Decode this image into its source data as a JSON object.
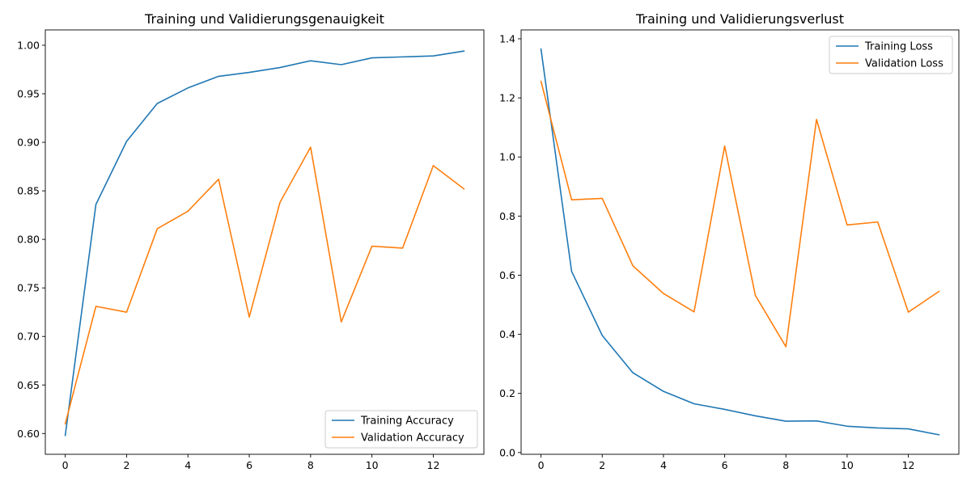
{
  "chart_data": [
    {
      "type": "line",
      "title": "Training und Validierungsgenauigkeit",
      "xlabel": "",
      "ylabel": "",
      "xlim": [
        -0.65,
        13.65
      ],
      "ylim": [
        0.5786,
        1.0158
      ],
      "xticks": [
        0,
        2,
        4,
        6,
        8,
        10,
        12
      ],
      "yticks": [
        0.6,
        0.65,
        0.7,
        0.75,
        0.8,
        0.85,
        0.9,
        0.95,
        1.0
      ],
      "x": [
        0,
        1,
        2,
        3,
        4,
        5,
        6,
        7,
        8,
        9,
        10,
        11,
        12,
        13
      ],
      "legend_position": "lower-right",
      "grid": false,
      "series": [
        {
          "name": "Training Accuracy",
          "color": "#1f77b4",
          "values": [
            0.598,
            0.836,
            0.901,
            0.94,
            0.956,
            0.968,
            0.972,
            0.977,
            0.984,
            0.98,
            0.987,
            0.988,
            0.989,
            0.994
          ]
        },
        {
          "name": "Validation Accuracy",
          "color": "#ff7f0e",
          "values": [
            0.61,
            0.731,
            0.725,
            0.811,
            0.829,
            0.862,
            0.72,
            0.838,
            0.895,
            0.715,
            0.793,
            0.791,
            0.876,
            0.852
          ]
        }
      ]
    },
    {
      "type": "line",
      "title": "Training und Validierungsverlust",
      "xlabel": "",
      "ylabel": "",
      "xlim": [
        -0.65,
        13.65
      ],
      "ylim": [
        -0.006,
        1.43
      ],
      "xticks": [
        0,
        2,
        4,
        6,
        8,
        10,
        12
      ],
      "yticks": [
        0.0,
        0.2,
        0.4,
        0.6,
        0.8,
        1.0,
        1.2,
        1.4
      ],
      "x": [
        0,
        1,
        2,
        3,
        4,
        5,
        6,
        7,
        8,
        9,
        10,
        11,
        12,
        13
      ],
      "legend_position": "upper-right",
      "grid": false,
      "series": [
        {
          "name": "Training Loss",
          "color": "#1f77b4",
          "values": [
            1.365,
            0.613,
            0.396,
            0.27,
            0.207,
            0.165,
            0.146,
            0.124,
            0.106,
            0.107,
            0.089,
            0.083,
            0.08,
            0.06
          ]
        },
        {
          "name": "Validation Loss",
          "color": "#ff7f0e",
          "values": [
            1.256,
            0.855,
            0.86,
            0.632,
            0.538,
            0.476,
            1.037,
            0.532,
            0.358,
            1.127,
            0.77,
            0.78,
            0.475,
            0.545
          ]
        }
      ]
    }
  ]
}
